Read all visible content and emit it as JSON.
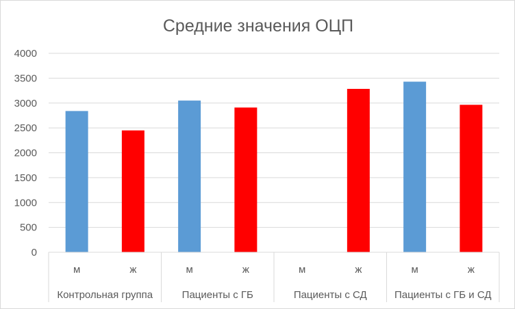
{
  "chart_data": {
    "type": "bar",
    "title": "Средние значения ОЦП",
    "xlabel": "",
    "ylabel": "",
    "ylim": [
      0,
      4000
    ],
    "yticks": [
      0,
      500,
      1000,
      1500,
      2000,
      2500,
      3000,
      3500,
      4000
    ],
    "grid": true,
    "legend": "none",
    "groups": [
      "Контрольная группа",
      "Пациенты с ГБ",
      "Пациенты с СД",
      "Пациенты с ГБ и СД"
    ],
    "subcategories": [
      "м",
      "ж"
    ],
    "colors": {
      "м": "#5b9bd5",
      "ж": "#ff0000"
    },
    "bars": [
      {
        "group": "Контрольная группа",
        "sub": "м",
        "value": 2840
      },
      {
        "group": "Контрольная группа",
        "sub": "ж",
        "value": 2450
      },
      {
        "group": "Пациенты с ГБ",
        "sub": "м",
        "value": 3050
      },
      {
        "group": "Пациенты с ГБ",
        "sub": "ж",
        "value": 2910
      },
      {
        "group": "Пациенты с СД",
        "sub": "м",
        "value": null
      },
      {
        "group": "Пациенты с СД",
        "sub": "ж",
        "value": 3285
      },
      {
        "group": "Пациенты с ГБ и СД",
        "sub": "м",
        "value": 3430
      },
      {
        "group": "Пациенты с ГБ и СД",
        "sub": "ж",
        "value": 2965
      }
    ]
  }
}
